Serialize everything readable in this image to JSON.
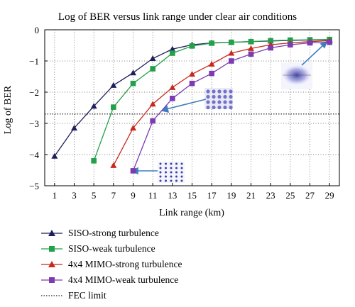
{
  "chart_data": {
    "type": "line",
    "title": "Log of BER versus link range under clear air conditions",
    "xlabel": "Link range (km)",
    "ylabel": "Log of BER",
    "xlim": [
      0,
      30
    ],
    "ylim": [
      -5,
      0
    ],
    "xticks": [
      1,
      3,
      5,
      7,
      9,
      11,
      13,
      15,
      17,
      19,
      21,
      23,
      25,
      27,
      29
    ],
    "yticks": [
      0,
      -1,
      -2,
      -3,
      -4,
      -5
    ],
    "grid": true,
    "legend_position": "below",
    "fec_limit": -2.7,
    "series": [
      {
        "name": "SISO-strong turbulence",
        "color": "#1f1f5c",
        "marker": "triangle",
        "x": [
          1,
          3,
          5,
          7,
          9,
          11,
          13,
          15,
          17,
          19,
          21,
          23,
          25,
          27,
          29
        ],
        "y": [
          -4.05,
          -3.15,
          -2.45,
          -1.78,
          -1.38,
          -0.92,
          -0.62,
          -0.48,
          -0.42,
          -0.4,
          -0.38,
          -0.36,
          -0.34,
          -0.33,
          -0.32
        ]
      },
      {
        "name": "SISO-weak turbulence",
        "color": "#22a04a",
        "marker": "square",
        "x": [
          5,
          7,
          9,
          11,
          13,
          15,
          17,
          19,
          21,
          23,
          25,
          27,
          29
        ],
        "y": [
          -4.2,
          -2.48,
          -1.72,
          -1.25,
          -0.75,
          -0.52,
          -0.43,
          -0.4,
          -0.38,
          -0.35,
          -0.33,
          -0.32,
          -0.31
        ]
      },
      {
        "name": "4x4 MIMO-strong turbulence",
        "color": "#c8281e",
        "marker": "triangle",
        "x": [
          7,
          9,
          11,
          13,
          15,
          17,
          19,
          21,
          23,
          25,
          27,
          29
        ],
        "y": [
          -4.35,
          -3.15,
          -2.38,
          -1.85,
          -1.42,
          -1.1,
          -0.75,
          -0.6,
          -0.48,
          -0.42,
          -0.38,
          -0.35
        ]
      },
      {
        "name": "4x4 MIMO-weak turbulence",
        "color": "#7a3cb0",
        "marker": "square",
        "x": [
          9,
          11,
          13,
          15,
          17,
          19,
          21,
          23,
          25,
          27,
          29
        ],
        "y": [
          -4.52,
          -2.92,
          -2.2,
          -1.72,
          -1.4,
          -1.0,
          -0.78,
          -0.58,
          -0.48,
          -0.42,
          -0.4
        ]
      }
    ],
    "fec_legend_label": "FEC limit"
  }
}
